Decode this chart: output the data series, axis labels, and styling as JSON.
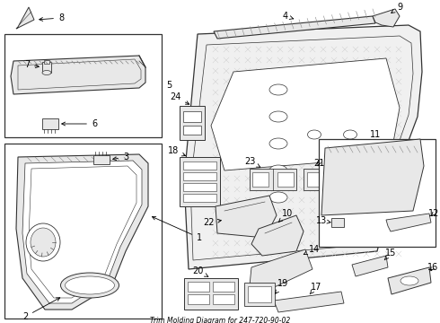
{
  "title": "Trim Molding Diagram for 247-720-90-02",
  "bg_color": "#ffffff",
  "lc": "#333333",
  "gray_fill": "#e8e8e8",
  "dark_gray": "#bbbbbb",
  "figsize": [
    4.9,
    3.6
  ],
  "dpi": 100
}
